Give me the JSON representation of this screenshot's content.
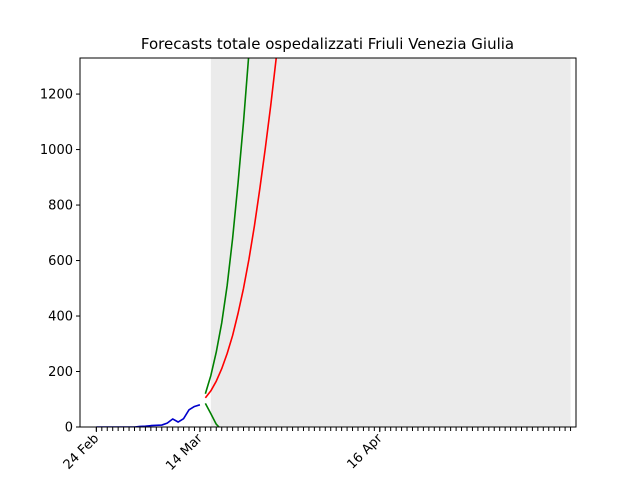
{
  "chart_data": {
    "type": "line",
    "title": "Forecasts totale ospedalizzati Friuli Venezia Giulia",
    "xlabel": "",
    "ylabel": "",
    "x_start": "2020-02-21",
    "x_end": "2020-05-22",
    "xlim": [
      "2020-02-21",
      "2020-05-22"
    ],
    "ylim": [
      0,
      1330
    ],
    "grid": false,
    "forecast_region": {
      "from": "2020-03-16",
      "to": "2020-05-21",
      "color": "#ebebeb"
    },
    "x_tick_labels": [
      {
        "date": "2020-02-24",
        "label": "24 Feb"
      },
      {
        "date": "2020-03-14",
        "label": "14 Mar"
      },
      {
        "date": "2020-04-16",
        "label": "16 Apr"
      }
    ],
    "x_minor_ticks": {
      "from": "2020-02-24",
      "to": "2020-05-21",
      "step_days": 1
    },
    "y_ticks": [
      0,
      200,
      400,
      600,
      800,
      1000,
      1200
    ],
    "series": [
      {
        "color": "#0000cc",
        "points": [
          [
            "2020-02-24",
            0
          ],
          [
            "2020-02-25",
            0
          ],
          [
            "2020-02-26",
            0
          ],
          [
            "2020-02-27",
            0
          ],
          [
            "2020-02-28",
            0
          ],
          [
            "2020-02-29",
            0
          ],
          [
            "2020-03-01",
            0
          ],
          [
            "2020-03-02",
            0
          ],
          [
            "2020-03-03",
            2
          ],
          [
            "2020-03-04",
            3
          ],
          [
            "2020-03-05",
            5
          ],
          [
            "2020-03-06",
            6
          ],
          [
            "2020-03-07",
            7
          ],
          [
            "2020-03-08",
            14
          ],
          [
            "2020-03-09",
            29
          ],
          [
            "2020-03-10",
            18
          ],
          [
            "2020-03-11",
            30
          ],
          [
            "2020-03-12",
            62
          ],
          [
            "2020-03-13",
            74
          ],
          [
            "2020-03-14",
            80
          ]
        ]
      },
      {
        "color": "#008000",
        "points": [
          [
            "2020-03-15",
            120
          ],
          [
            "2020-03-16",
            185
          ],
          [
            "2020-03-17",
            270
          ],
          [
            "2020-03-18",
            375
          ],
          [
            "2020-03-19",
            510
          ],
          [
            "2020-03-20",
            680
          ],
          [
            "2020-03-21",
            880
          ],
          [
            "2020-03-22",
            1100
          ],
          [
            "2020-03-23",
            1350
          ]
        ]
      },
      {
        "color": "#008000",
        "points": [
          [
            "2020-03-15",
            85
          ],
          [
            "2020-03-16",
            48
          ],
          [
            "2020-03-17",
            10
          ],
          [
            "2020-03-17T12:00",
            0
          ]
        ]
      },
      {
        "color": "#ff0000",
        "points": [
          [
            "2020-03-15",
            105
          ],
          [
            "2020-03-16",
            130
          ],
          [
            "2020-03-17",
            165
          ],
          [
            "2020-03-18",
            210
          ],
          [
            "2020-03-19",
            265
          ],
          [
            "2020-03-20",
            330
          ],
          [
            "2020-03-21",
            410
          ],
          [
            "2020-03-22",
            500
          ],
          [
            "2020-03-23",
            605
          ],
          [
            "2020-03-24",
            725
          ],
          [
            "2020-03-25",
            860
          ],
          [
            "2020-03-26",
            1005
          ],
          [
            "2020-03-27",
            1160
          ],
          [
            "2020-03-28",
            1330
          ]
        ]
      }
    ]
  }
}
